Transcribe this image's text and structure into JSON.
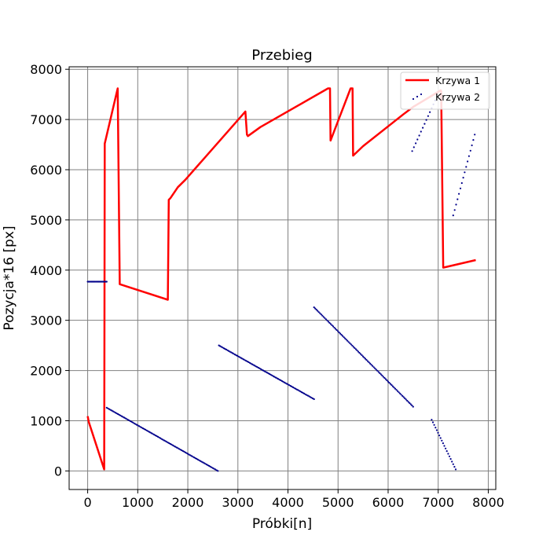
{
  "chart_data": {
    "type": "line",
    "title": "Przebieg",
    "xlabel": "Próbki[n]",
    "ylabel": "Pozycja*16 [px]",
    "xlim": [
      -370,
      8150
    ],
    "ylim": [
      -370,
      8050
    ],
    "xticks": [
      0,
      1000,
      2000,
      3000,
      4000,
      5000,
      6000,
      7000,
      8000
    ],
    "yticks": [
      0,
      1000,
      2000,
      3000,
      4000,
      5000,
      6000,
      7000,
      8000
    ],
    "grid": true,
    "legend_position": "top-right",
    "series": [
      {
        "name": "Krzywa 1",
        "color": "#ff0000",
        "style": "line",
        "x": [
          0,
          20,
          330,
          335,
          340,
          590,
          600,
          640,
          1600,
          1620,
          1650,
          1800,
          1950,
          3150,
          3180,
          3200,
          3450,
          4800,
          4840,
          4850,
          5250,
          5290,
          5300,
          5500,
          6300,
          6500,
          7050,
          7060,
          7100,
          7750
        ],
        "y": [
          1090,
          980,
          30,
          2500,
          6520,
          7580,
          7620,
          3720,
          3410,
          5400,
          5430,
          5650,
          5800,
          7160,
          6700,
          6670,
          6850,
          7620,
          7620,
          6580,
          7620,
          7620,
          6280,
          6470,
          7100,
          7250,
          7580,
          7560,
          4050,
          4200
        ]
      },
      {
        "name": "Krzywa 2",
        "color": "#00008b",
        "style": "dots",
        "segments": [
          {
            "x": [
              0,
              380
            ],
            "y": [
              3770,
              3770
            ],
            "n": 22
          },
          {
            "x": [
              380,
              2600
            ],
            "y": [
              1260,
              0
            ],
            "n": 90
          },
          {
            "x": [
              2620,
              4520
            ],
            "y": [
              2500,
              1430
            ],
            "n": 78
          },
          {
            "x": [
              4520,
              6500
            ],
            "y": [
              3260,
              1280
            ],
            "n": 84
          },
          {
            "x": [
              6480,
              6940
            ],
            "y": [
              6370,
              7380
            ],
            "n": 14
          },
          {
            "x": [
              6870,
              7350
            ],
            "y": [
              1020,
              30
            ],
            "n": 20
          },
          {
            "x": [
              7300,
              7730
            ],
            "y": [
              5090,
              6700
            ],
            "n": 16
          }
        ]
      }
    ]
  }
}
